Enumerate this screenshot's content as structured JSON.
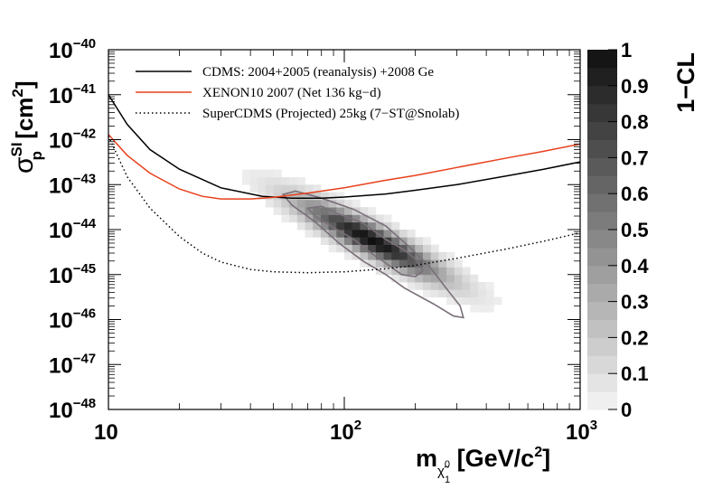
{
  "chart_data": {
    "type": "heatmap",
    "xscale": "log",
    "yscale": "log",
    "xlim": [
      10,
      1000
    ],
    "ylim": [
      1e-48,
      1e-40
    ],
    "x_ticks": [
      {
        "value": 10,
        "base": "10",
        "exp": ""
      },
      {
        "value": 100,
        "base": "10",
        "exp": "2"
      },
      {
        "value": 1000,
        "base": "10",
        "exp": "3"
      }
    ],
    "y_ticks": [
      {
        "value": 1e-40,
        "base": "10",
        "exp": "−40"
      },
      {
        "value": 1e-41,
        "base": "10",
        "exp": "−41"
      },
      {
        "value": 1e-42,
        "base": "10",
        "exp": "−42"
      },
      {
        "value": 1e-43,
        "base": "10",
        "exp": "−43"
      },
      {
        "value": 1e-44,
        "base": "10",
        "exp": "−44"
      },
      {
        "value": 1e-45,
        "base": "10",
        "exp": "−45"
      },
      {
        "value": 1e-46,
        "base": "10",
        "exp": "−46"
      },
      {
        "value": 1e-47,
        "base": "10",
        "exp": "−47"
      },
      {
        "value": 1e-48,
        "base": "10",
        "exp": "−48"
      }
    ],
    "xlabel": {
      "main": "m",
      "sub": "χ̃",
      "subsup": "0",
      "subsub": "1",
      "unit": " [GeV/c",
      "unit_exp": "2",
      "unit_end": "]"
    },
    "ylabel": {
      "sigma": "σ",
      "sup": "SI",
      "sub": "p",
      "unit": " [cm",
      "unit_exp": "2",
      "unit_end": "]"
    },
    "colorbar": {
      "title": "1−CL",
      "range": [
        0,
        1
      ],
      "ticks": [
        "0",
        "0.1",
        "0.2",
        "0.3",
        "0.4",
        "0.5",
        "0.6",
        "0.7",
        "0.8",
        "0.9",
        "1"
      ]
    },
    "series": [
      {
        "name": "CDMS: 2004+2005 (reanalysis) +2008 Ge",
        "color": "#000000",
        "style": "solid",
        "x": [
          10,
          12,
          15,
          20,
          30,
          45,
          60,
          80,
          100,
          150,
          200,
          300,
          500,
          700,
          1000
        ],
        "y": [
          1e-41,
          2.2e-42,
          6e-43,
          2.2e-43,
          8.5e-44,
          5.5e-44,
          5e-44,
          5e-44,
          5.3e-44,
          6.2e-44,
          7.5e-44,
          1e-43,
          1.6e-43,
          2.2e-43,
          3.2e-43
        ]
      },
      {
        "name": "XENON10 2007 (Net 136 kg−d)",
        "color": "#e8401c",
        "style": "solid",
        "x": [
          10,
          12,
          15,
          20,
          25,
          30,
          40,
          50,
          70,
          100,
          150,
          200,
          300,
          500,
          700,
          1000
        ],
        "y": [
          1.3e-42,
          4.5e-43,
          1.8e-43,
          8e-44,
          5.5e-44,
          4.8e-44,
          4.8e-44,
          5.2e-44,
          6.5e-44,
          8.5e-44,
          1.25e-43,
          1.6e-43,
          2.4e-43,
          4e-43,
          5.5e-43,
          8e-43
        ]
      },
      {
        "name": "SuperCDMS (Projected) 25kg (7−ST@Snolab)",
        "color": "#000000",
        "style": "dotted",
        "x": [
          10,
          12,
          15,
          20,
          25,
          30,
          40,
          50,
          70,
          100,
          150,
          200,
          300,
          500,
          700,
          1000
        ],
        "y": [
          1.2e-42,
          1.5e-43,
          3e-44,
          7e-45,
          3e-45,
          1.9e-45,
          1.3e-45,
          1.15e-45,
          1.1e-45,
          1.15e-45,
          1.35e-45,
          1.6e-45,
          2.3e-45,
          3.8e-45,
          5.5e-45,
          8.5e-45
        ]
      }
    ],
    "heatmap": {
      "description": "1−CL posterior density; peak near m≈130 GeV, σ≈6e-45 cm²",
      "peak": {
        "x": 130,
        "y": 6e-45,
        "value": 1.0
      },
      "contours": [
        {
          "level": "1σ",
          "x": [
            70,
            80,
            95,
            120,
            150,
            180,
            205,
            215,
            200,
            175,
            150,
            130,
            110,
            90,
            75,
            70
          ],
          "y": [
            3e-44,
            3.3e-44,
            2.2e-44,
            1.4e-44,
            6e-45,
            3.5e-45,
            2e-45,
            1.2e-45,
            9e-46,
            1e-45,
            1.8e-45,
            3e-45,
            6e-45,
            1.1e-44,
            2e-44,
            3e-44
          ]
        },
        {
          "level": "2σ",
          "x": [
            55,
            62,
            80,
            110,
            150,
            190,
            230,
            270,
            310,
            320,
            290,
            240,
            180,
            150,
            120,
            95,
            75,
            60,
            55
          ],
          "y": [
            6e-44,
            7.2e-44,
            5e-44,
            2.8e-44,
            1.2e-44,
            4e-45,
            1.5e-45,
            5e-46,
            2e-46,
            1.1e-46,
            1.2e-46,
            2.2e-46,
            5e-46,
            1e-45,
            2e-45,
            5e-45,
            1.5e-44,
            3.5e-44,
            6e-44
          ]
        }
      ]
    }
  }
}
